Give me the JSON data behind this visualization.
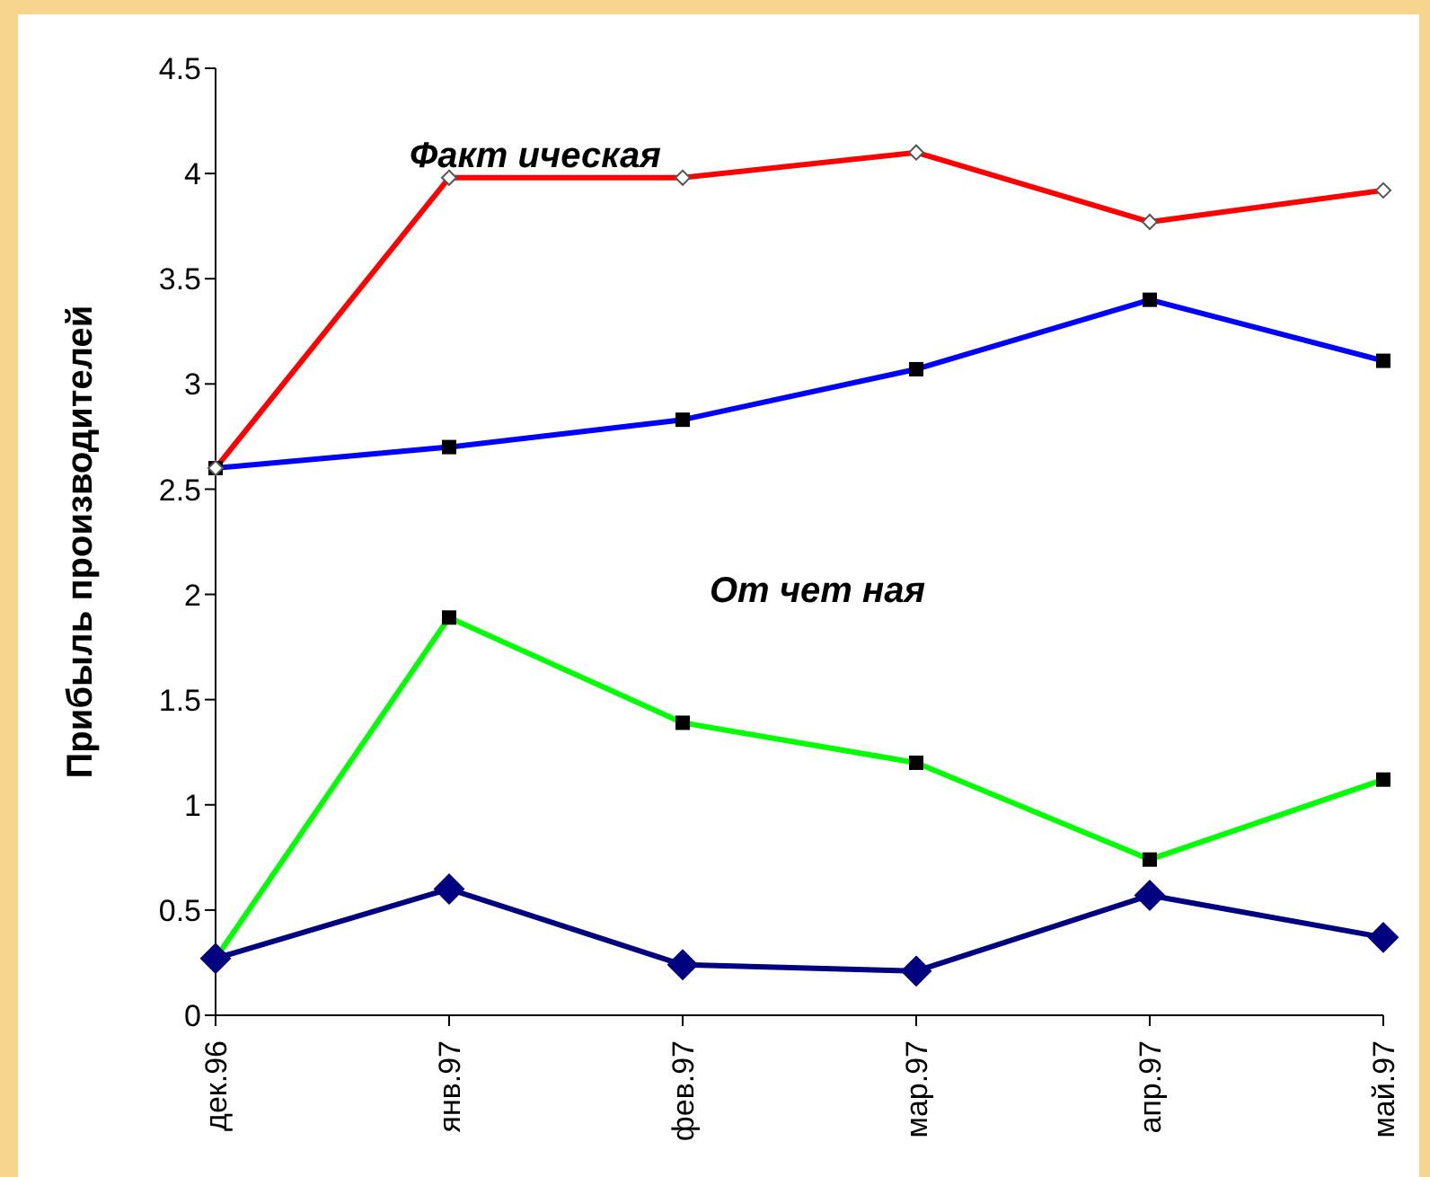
{
  "chart_data": {
    "type": "line",
    "ylabel": "Прибыль производителей",
    "categories": [
      "дек.96",
      "янв.97",
      "фев.97",
      "мар.97",
      "апр.97",
      "май.97"
    ],
    "series": [
      {
        "color": "#0000ff",
        "marker": "square",
        "values": [
          2.6,
          2.7,
          2.83,
          3.07,
          3.4,
          3.11
        ]
      },
      {
        "color": "#ff0000",
        "marker": "diamond",
        "values": [
          2.6,
          3.98,
          3.98,
          4.1,
          3.77,
          3.92
        ]
      },
      {
        "color": "#00ff00",
        "marker": "square",
        "values": [
          0.27,
          1.89,
          1.39,
          1.2,
          0.74,
          1.12
        ]
      },
      {
        "color": "#000080",
        "marker": "diamond",
        "values": [
          0.27,
          0.6,
          0.24,
          0.21,
          0.57,
          0.37
        ]
      }
    ],
    "annotations": [
      "Факт ическая",
      "От чет ная"
    ],
    "ylim": [
      0,
      4.5
    ],
    "yticks": [
      0,
      {
        "value": 0.5,
        "label": "0.5"
      },
      1,
      {
        "value": 1.5,
        "label": "1.5"
      },
      2,
      {
        "value": 2.5,
        "label": "2.5"
      },
      3,
      {
        "value": 3.5,
        "label": "3.5"
      },
      4,
      {
        "value": 4.5,
        "label": "4.5"
      }
    ],
    "grid": false,
    "legend": false
  }
}
